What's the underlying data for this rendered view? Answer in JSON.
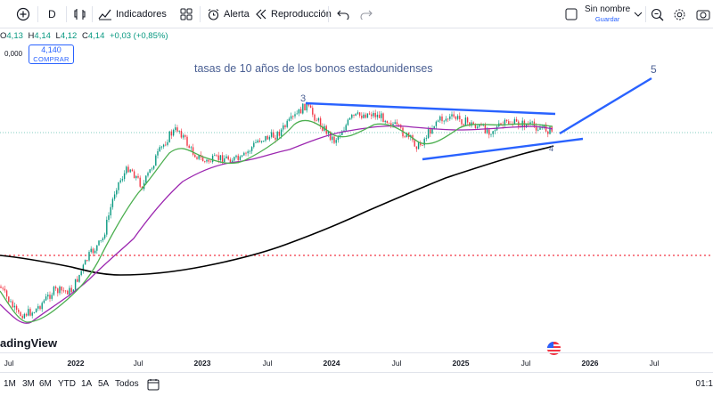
{
  "toolbar": {
    "interval": "D",
    "indicators_label": "Indicadores",
    "alert_label": "Alerta",
    "replay_label": "Reproducción",
    "layout_name": "Sin nombre",
    "layout_save": "Guardar"
  },
  "legend": {
    "open_key": "O",
    "open_value": "4,13",
    "high_key": "H",
    "high_value": "4,14",
    "low_key": "L",
    "low_value": "4,12",
    "close_key": "C",
    "close_value": "4,14",
    "change": "+0,03 (+0,85%)",
    "up_color": "#089981"
  },
  "trade": {
    "spread": "0,000",
    "price": "4,140",
    "action": "COMPRAR"
  },
  "annotations": {
    "title": "tasas de 10 años de los bonos estadounidenses",
    "wave3": "3",
    "wave4": "4",
    "wave5": "5",
    "line_color": "#2962ff"
  },
  "watermark": "adingView",
  "time_axis": [
    {
      "label": "Jul",
      "bold": false
    },
    {
      "label": "2022",
      "bold": true
    },
    {
      "label": "Jul",
      "bold": false
    },
    {
      "label": "2023",
      "bold": true
    },
    {
      "label": "Jul",
      "bold": false
    },
    {
      "label": "2024",
      "bold": true
    },
    {
      "label": "Jul",
      "bold": false
    },
    {
      "label": "2025",
      "bold": true
    },
    {
      "label": "Jul",
      "bold": false
    },
    {
      "label": "2026",
      "bold": true
    },
    {
      "label": "Jul",
      "bold": false
    }
  ],
  "ranges": [
    "1M",
    "3M",
    "6M",
    "YTD",
    "1A",
    "5A",
    "Todos"
  ],
  "clock": "01:1",
  "colors": {
    "candle_up": "#089981",
    "candle_down": "#f23645",
    "ma_fast": "#4caf50",
    "ma_mid": "#9c27b0",
    "ma_slow": "#000000",
    "price_line": "#089981",
    "level_line": "#f23645"
  }
}
